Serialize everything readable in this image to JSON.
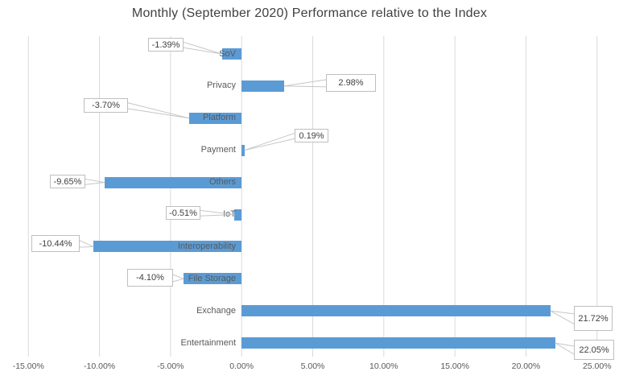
{
  "chart_data": {
    "type": "bar",
    "orientation": "horizontal",
    "title": "Monthly (September 2020) Performance relative to the Index",
    "categories": [
      "SoV",
      "Privacy",
      "Platform",
      "Payment",
      "Others",
      "IoT",
      "Interoperability",
      "File Storage",
      "Exchange",
      "Entertainment"
    ],
    "values": [
      -1.39,
      2.98,
      -3.7,
      0.19,
      -9.65,
      -0.51,
      -10.44,
      -4.1,
      21.72,
      22.05
    ],
    "data_labels": [
      "-1.39%",
      "2.98%",
      "-3.70%",
      "0.19%",
      "-9.65%",
      "-0.51%",
      "-10.44%",
      "-4.10%",
      "21.72%",
      "22.05%"
    ],
    "xlabel": "",
    "ylabel": "",
    "xlim": [
      -15,
      25
    ],
    "x_tick_values": [
      -15,
      -10,
      -5,
      0,
      5,
      10,
      15,
      20,
      25
    ],
    "x_ticks": [
      "-15.00%",
      "-10.00%",
      "-5.00%",
      "0.00%",
      "5.00%",
      "10.00%",
      "15.00%",
      "20.00%",
      "25.00%"
    ],
    "grid": true,
    "legend": false,
    "colors": {
      "bar": "#5B9BD5",
      "gridline": "#D9D9D9",
      "title_text": "#404040",
      "axis_text": "#595959",
      "callout_border": "#BFBFBF",
      "callout_text": "#404040",
      "leader_line": "#C6C6C6",
      "background": "#FFFFFF"
    }
  }
}
